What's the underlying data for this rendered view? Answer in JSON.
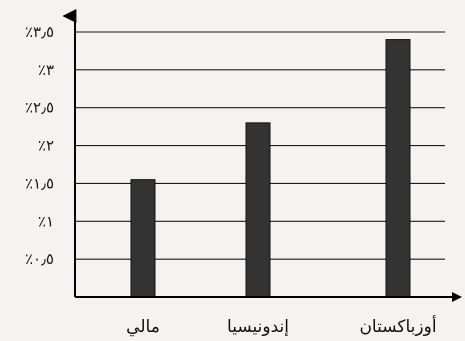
{
  "chart_data": {
    "type": "bar",
    "title": "",
    "xlabel": "",
    "ylabel": "",
    "categories": [
      "مالي",
      "إندونيسيا",
      "أوزباكستان"
    ],
    "values": [
      1.55,
      2.3,
      3.4
    ],
    "ylim": [
      0,
      3.5
    ],
    "yticks": [
      0.5,
      1,
      1.5,
      2,
      2.5,
      3,
      3.5
    ],
    "ytick_labels": [
      "٪۰٫٥",
      "٪١",
      "٪١٫٥",
      "٪٢",
      "٪٢٫٥",
      "٪٣",
      "٪٣٫٥"
    ],
    "grid": true,
    "bar_color": "#333333"
  }
}
